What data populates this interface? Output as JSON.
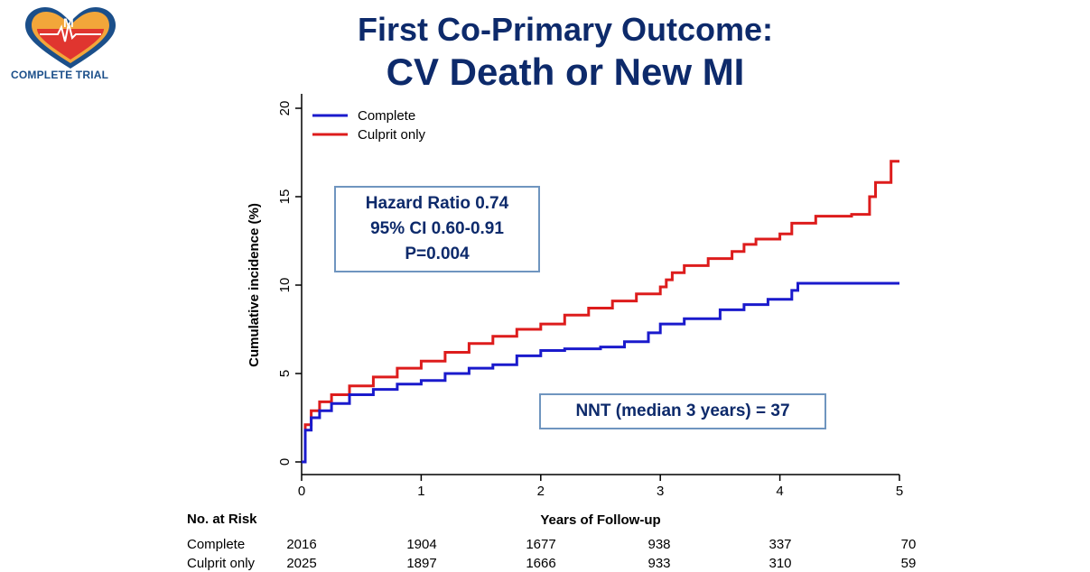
{
  "header": {
    "title_line1": "First Co-Primary Outcome:",
    "title_line2": "CV Death or New MI",
    "logo_text": "COMPLETE TRIAL"
  },
  "annotations": {
    "hr_line1": "Hazard Ratio 0.74",
    "hr_line2": "95% CI 0.60-0.91",
    "hr_line3": "P=0.004",
    "nnt": "NNT (median 3 years) = 37"
  },
  "risk_table": {
    "header": "No. at Risk",
    "rows": [
      {
        "label": "Complete",
        "values": [
          "2016",
          "1904",
          "1677",
          "938",
          "337",
          "70"
        ]
      },
      {
        "label": "Culprit only",
        "values": [
          "2025",
          "1897",
          "1666",
          "933",
          "310",
          "59"
        ]
      }
    ]
  },
  "chart_data": {
    "type": "line",
    "title": "",
    "xlabel": "Years of Follow-up",
    "ylabel": "Cumulative incidence (%)",
    "xlim": [
      0,
      5
    ],
    "ylim": [
      0,
      20
    ],
    "xticks": [
      "0",
      "1",
      "2",
      "3",
      "4",
      "5"
    ],
    "yticks": [
      "0",
      "5",
      "10",
      "15",
      "20"
    ],
    "grid": false,
    "legend_position": "top-left",
    "colors": {
      "Complete": "#1a1acc",
      "Culprit only": "#dd1c1c"
    },
    "series": [
      {
        "name": "Complete",
        "x": [
          0,
          0.03,
          0.08,
          0.15,
          0.25,
          0.4,
          0.6,
          0.8,
          1.0,
          1.2,
          1.4,
          1.6,
          1.8,
          2.0,
          2.2,
          2.5,
          2.7,
          2.9,
          3.0,
          3.2,
          3.5,
          3.7,
          3.9,
          4.05,
          4.1,
          4.15,
          4.5,
          5.0
        ],
        "y": [
          0,
          1.8,
          2.5,
          2.9,
          3.3,
          3.8,
          4.1,
          4.4,
          4.6,
          5.0,
          5.3,
          5.5,
          6.0,
          6.3,
          6.4,
          6.5,
          6.8,
          7.3,
          7.8,
          8.1,
          8.6,
          8.9,
          9.2,
          9.2,
          9.7,
          10.1,
          10.1,
          10.1
        ]
      },
      {
        "name": "Culprit only",
        "x": [
          0,
          0.03,
          0.08,
          0.15,
          0.25,
          0.4,
          0.6,
          0.8,
          1.0,
          1.2,
          1.4,
          1.6,
          1.8,
          2.0,
          2.2,
          2.4,
          2.6,
          2.8,
          3.0,
          3.05,
          3.1,
          3.2,
          3.4,
          3.6,
          3.7,
          3.8,
          4.0,
          4.1,
          4.3,
          4.6,
          4.7,
          4.75,
          4.8,
          4.9,
          4.93,
          5.0
        ],
        "y": [
          0,
          2.1,
          2.9,
          3.4,
          3.8,
          4.3,
          4.8,
          5.3,
          5.7,
          6.2,
          6.7,
          7.1,
          7.5,
          7.8,
          8.3,
          8.7,
          9.1,
          9.5,
          9.9,
          10.3,
          10.7,
          11.1,
          11.5,
          11.9,
          12.3,
          12.6,
          12.9,
          13.5,
          13.9,
          14.0,
          14.0,
          15.0,
          15.8,
          15.8,
          17.0,
          17.0
        ]
      }
    ]
  }
}
